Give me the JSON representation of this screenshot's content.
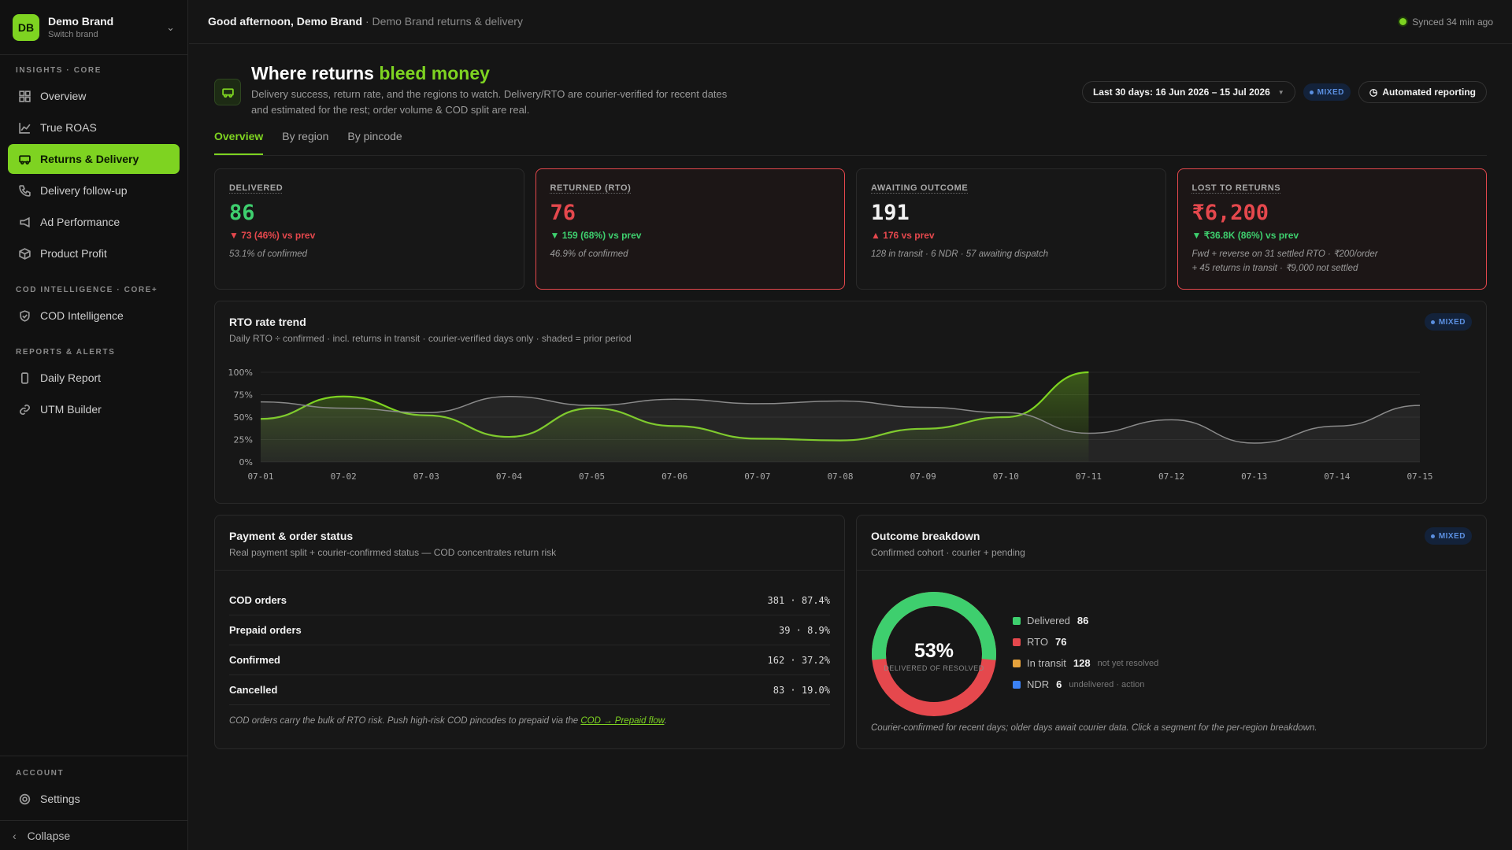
{
  "brand": {
    "initials": "DB",
    "name": "Demo Brand",
    "sub": "Switch brand"
  },
  "sidebar": {
    "sections": [
      {
        "title": "INSIGHTS · CORE",
        "items": [
          "Overview",
          "True ROAS",
          "Returns & Delivery",
          "Delivery follow-up",
          "Ad Performance",
          "Product Profit"
        ]
      },
      {
        "title": "COD INTELLIGENCE · CORE+",
        "items": [
          "COD Intelligence"
        ]
      },
      {
        "title": "REPORTS & ALERTS",
        "items": [
          "Daily Report",
          "UTM Builder"
        ]
      }
    ],
    "active": "Returns & Delivery",
    "account_title": "ACCOUNT",
    "settings": "Settings",
    "collapse": "Collapse"
  },
  "topbar": {
    "greeting": "Good afternoon, Demo Brand",
    "context": "· Demo Brand returns & delivery",
    "synced": "Synced 34 min ago"
  },
  "header": {
    "title_a": "Where returns",
    "title_b": "bleed money",
    "desc": "Delivery success, return rate, and the regions to watch. Delivery/RTO are courier-verified for recent dates and estimated for the rest; order volume & COD split are real.",
    "date_range": "Last 30 days: 16 Jun 2026 – 15 Jul 2026",
    "mixed": "MIXED",
    "auto": "Automated reporting"
  },
  "tabs": [
    "Overview",
    "By region",
    "By pincode"
  ],
  "kpis": [
    {
      "label": "DELIVERED",
      "value": "86",
      "delta": "▼ 73 (46%) vs prev",
      "note": "53.1% of confirmed",
      "value_color": "g",
      "delta_color": "r"
    },
    {
      "label": "RETURNED (RTO)",
      "value": "76",
      "delta": "▼ 159 (68%) vs prev",
      "note": "46.9% of confirmed",
      "value_color": "r",
      "delta_color": "g"
    },
    {
      "label": "AWAITING OUTCOME",
      "value": "191",
      "delta": "▲ 176 vs prev",
      "note": "128 in transit · 6 NDR · 57 awaiting dispatch",
      "value_color": "w",
      "delta_color": "r"
    },
    {
      "label": "LOST TO RETURNS",
      "value": "₹6,200",
      "delta": "▼ ₹36.8K (86%) vs prev",
      "note": "Fwd + reverse on 31 settled RTO · ₹200/order",
      "note2": "+ 45 returns in transit · ₹9,000 not settled",
      "value_color": "r",
      "delta_color": "g"
    }
  ],
  "trend": {
    "title": "RTO rate trend",
    "sub": "Daily RTO ÷ confirmed · incl. returns in transit · courier-verified days only · shaded = prior period",
    "badge": "MIXED"
  },
  "chart_data": {
    "type": "line",
    "x": [
      "07-01",
      "07-02",
      "07-03",
      "07-04",
      "07-05",
      "07-06",
      "07-07",
      "07-08",
      "07-09",
      "07-10",
      "07-11",
      "07-12",
      "07-13",
      "07-14",
      "07-15"
    ],
    "y_ticks": [
      "100%",
      "75%",
      "50%",
      "25%",
      "0%"
    ],
    "ylim": [
      0,
      100
    ],
    "series": [
      {
        "values": [
          48,
          73,
          52,
          28,
          60,
          40,
          26,
          24,
          37,
          50,
          100,
          null,
          null,
          null,
          null
        ],
        "color": "#7ed321"
      },
      {
        "values": [
          67,
          60,
          55,
          73,
          63,
          70,
          65,
          68,
          61,
          55,
          32,
          47,
          21,
          40,
          63
        ],
        "color": "#8a8a8a"
      }
    ]
  },
  "payment": {
    "title": "Payment & order status",
    "sub": "Real payment split + courier-confirmed status — COD concentrates return risk",
    "rows": [
      {
        "label": "COD orders",
        "value": "381 · 87.4%"
      },
      {
        "label": "Prepaid orders",
        "value": "39 · 8.9%"
      },
      {
        "label": "Confirmed",
        "value": "162 · 37.2%"
      },
      {
        "label": "Cancelled",
        "value": "83 · 19.0%"
      }
    ],
    "foot_text": "COD orders carry the bulk of RTO risk. Push high-risk COD pincodes to prepaid via the",
    "foot_link": "COD → Prepaid flow",
    "foot_end": "."
  },
  "outcome": {
    "title": "Outcome breakdown",
    "sub": "Confirmed cohort · courier + pending",
    "badge": "MIXED",
    "donut_pct": "53%",
    "donut_label": "DELIVERED OF RESOLVED",
    "delivered_share": 0.531,
    "legend": [
      {
        "label": "Delivered",
        "value": "86",
        "note": "",
        "color": "#3ecf6e"
      },
      {
        "label": "RTO",
        "value": "76",
        "note": "",
        "color": "#e5484d"
      },
      {
        "label": "In transit",
        "value": "128",
        "note": "not yet resolved",
        "color": "#e6a23c"
      },
      {
        "label": "NDR",
        "value": "6",
        "note": "undelivered · action",
        "color": "#3b82f6"
      }
    ],
    "foot": "Courier-confirmed for recent days; older days await courier data. Click a segment for the per-region breakdown."
  }
}
